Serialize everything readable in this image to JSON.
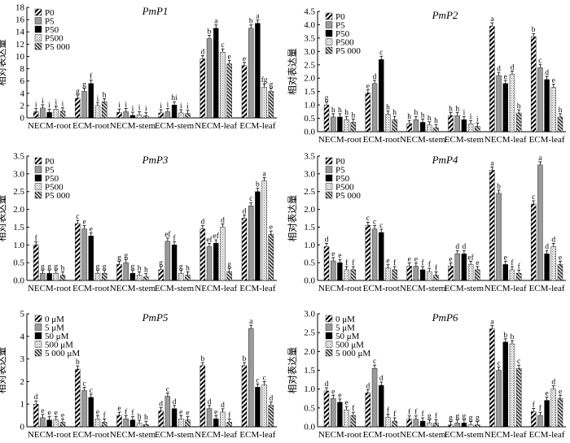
{
  "colors": {
    "axis": "#000000",
    "p0": "hatch-diagonal-black",
    "p5": "#999999",
    "p50": "#000000",
    "p500": "dotted-light",
    "p5000": "hatch-dense"
  },
  "chart_data": [
    {
      "type": "bar",
      "title": "PmP1",
      "ylabel": "相对表达量",
      "ylim": [
        0,
        18
      ],
      "yticks": [
        0,
        2,
        4,
        6,
        8,
        10,
        12,
        14,
        16,
        18
      ],
      "categories": [
        "NECM-root",
        "ECM-root",
        "NECM-stem",
        "ECM-stem",
        "NECM-leaf",
        "ECM-leaf"
      ],
      "series": [
        {
          "name": "P0",
          "values": [
            1.0,
            3.2,
            0.9,
            0.8,
            9.6,
            8.5
          ],
          "letters": [
            "i",
            "g",
            "i",
            "i",
            "d",
            "e"
          ]
        },
        {
          "name": "P5",
          "values": [
            1.6,
            4.3,
            1.0,
            1.0,
            12.9,
            14.6
          ],
          "letters": [
            "i",
            "g",
            "i",
            "i",
            "b",
            "b"
          ]
        },
        {
          "name": "P50",
          "values": [
            0.9,
            5.6,
            0.4,
            2.1,
            14.6,
            15.4
          ],
          "letters": [
            "i",
            "f",
            "i",
            "hi",
            "a",
            "a"
          ]
        },
        {
          "name": "P500",
          "values": [
            1.4,
            2.0,
            0.5,
            0.8,
            10.7,
            5.0
          ],
          "letters": [
            "i",
            "i",
            "i",
            "i",
            "c",
            "fg"
          ]
        },
        {
          "name": "P5 000",
          "values": [
            1.1,
            2.6,
            0.3,
            0.7,
            8.8,
            4.3
          ],
          "letters": [
            "i",
            "h",
            "i",
            "i",
            "e",
            "g"
          ]
        }
      ]
    },
    {
      "type": "bar",
      "title": "PmP2",
      "ylabel": "相对表达量",
      "ylim": [
        0,
        4.5
      ],
      "yticks": [
        0,
        0.5,
        1.0,
        1.5,
        2.0,
        2.5,
        3.0,
        3.5,
        4.0,
        4.5
      ],
      "categories": [
        "NECM-root",
        "ECM-root",
        "NECM-stem",
        "ECM-stem",
        "NECM-leaf",
        "ECM-leaf"
      ],
      "series": [
        {
          "name": "P0",
          "values": [
            1.0,
            1.45,
            0.3,
            0.6,
            3.95,
            3.55
          ],
          "letters": [
            "g",
            "e",
            "h",
            "h",
            "a",
            "b"
          ]
        },
        {
          "name": "P5",
          "values": [
            0.55,
            1.8,
            0.45,
            0.6,
            2.1,
            2.4
          ],
          "letters": [
            "h",
            "d",
            "h",
            "h",
            "d",
            "c"
          ]
        },
        {
          "name": "P50",
          "values": [
            0.55,
            2.7,
            0.35,
            0.45,
            1.8,
            1.95
          ],
          "letters": [
            "h",
            "c",
            "h",
            "i",
            "e",
            "d"
          ]
        },
        {
          "name": "P500",
          "values": [
            0.45,
            0.65,
            0.25,
            0.3,
            2.15,
            1.65
          ],
          "letters": [
            "h",
            "h",
            "h",
            "i",
            "d",
            "e"
          ]
        },
        {
          "name": "P5 000",
          "values": [
            0.35,
            0.45,
            0.15,
            0.2,
            0.7,
            0.55
          ],
          "letters": [
            "h",
            "h",
            "h",
            "i",
            "h",
            "h"
          ]
        }
      ]
    },
    {
      "type": "bar",
      "title": "PmP3",
      "ylabel": "相对表达量",
      "ylim": [
        0,
        3.5
      ],
      "yticks": [
        0,
        0.5,
        1.0,
        1.5,
        2.0,
        2.5,
        3.0,
        3.5
      ],
      "categories": [
        "NECM-root",
        "ECM-root",
        "NECM-stem",
        "ECM-stem",
        "NECM-leaf",
        "ECM-leaf"
      ],
      "series": [
        {
          "name": "P0",
          "values": [
            1.0,
            1.6,
            0.45,
            0.3,
            1.45,
            1.75
          ],
          "letters": [
            "f",
            "c",
            "g",
            "g",
            "d",
            "d"
          ]
        },
        {
          "name": "P5",
          "values": [
            0.2,
            1.45,
            0.5,
            1.1,
            0.95,
            2.1
          ],
          "letters": [
            "g",
            "e",
            "g",
            "ef",
            "ef",
            "c"
          ]
        },
        {
          "name": "P50",
          "values": [
            0.2,
            1.25,
            0.2,
            1.0,
            1.05,
            2.5
          ],
          "letters": [
            "g",
            "e",
            "g",
            "f",
            "ef",
            "b"
          ]
        },
        {
          "name": "P500",
          "values": [
            0.2,
            0.2,
            0.15,
            0.2,
            1.5,
            2.8
          ],
          "letters": [
            "g",
            "g",
            "h",
            "g",
            "d",
            "a"
          ]
        },
        {
          "name": "P5 000",
          "values": [
            0.15,
            0.2,
            0.1,
            0.15,
            0.25,
            1.3
          ],
          "letters": [
            "h",
            "g",
            "h",
            "h",
            "g",
            "e"
          ]
        }
      ]
    },
    {
      "type": "bar",
      "title": "PmP4",
      "ylabel": "相对表达量",
      "ylim": [
        0,
        3.5
      ],
      "yticks": [
        0,
        0.5,
        1.0,
        1.5,
        2.0,
        2.5,
        3.0,
        3.5
      ],
      "categories": [
        "NECM-root",
        "ECM-root",
        "NECM-stem",
        "ECM-stem",
        "NECM-leaf",
        "ECM-leaf"
      ],
      "series": [
        {
          "name": "P0",
          "values": [
            0.95,
            1.55,
            0.4,
            0.4,
            3.1,
            2.15
          ],
          "letters": [
            "d",
            "c",
            "e",
            "e",
            "a",
            "c"
          ]
        },
        {
          "name": "P5",
          "values": [
            0.55,
            1.45,
            0.4,
            0.75,
            2.45,
            3.25
          ],
          "letters": [
            "e",
            "c",
            "e",
            "d",
            "b",
            "a"
          ]
        },
        {
          "name": "P50",
          "values": [
            0.5,
            1.35,
            0.3,
            0.75,
            0.45,
            0.75
          ],
          "letters": [
            "e",
            "c",
            "f",
            "d",
            "e",
            "d"
          ]
        },
        {
          "name": "P500",
          "values": [
            0.3,
            0.35,
            0.25,
            0.45,
            0.3,
            0.95
          ],
          "letters": [
            "f",
            "e",
            "f",
            "ef",
            "f",
            "d"
          ]
        },
        {
          "name": "P5 000",
          "values": [
            0.3,
            0.3,
            0.15,
            0.3,
            0.2,
            0.45
          ],
          "letters": [
            "f",
            "f",
            "f",
            "e",
            "f",
            "e"
          ]
        }
      ]
    },
    {
      "type": "bar",
      "title": "PmP5",
      "ylabel": "相对表达量",
      "ylim": [
        0,
        5
      ],
      "yticks": [
        0,
        1,
        2,
        3,
        4,
        5
      ],
      "categories": [
        "NECM-root",
        "ECM-root",
        "NECM-stem",
        "ECM-stem",
        "NECM-leaf",
        "ECM-leaf"
      ],
      "series": [
        {
          "name": "0 μM",
          "values": [
            1.0,
            2.55,
            0.5,
            0.7,
            2.7,
            2.7
          ],
          "letters": [
            "d",
            "b",
            "e",
            "d",
            "b",
            "b"
          ]
        },
        {
          "name": "5 μM",
          "values": [
            0.4,
            1.6,
            0.35,
            1.35,
            0.8,
            4.35
          ],
          "letters": [
            "e",
            "c",
            "f",
            "c",
            "d",
            "a"
          ]
        },
        {
          "name": "50 μM",
          "values": [
            0.3,
            1.3,
            0.3,
            0.8,
            0.35,
            1.75
          ],
          "letters": [
            "e",
            "c",
            "f",
            "d",
            "e",
            "c"
          ]
        },
        {
          "name": "500 μM",
          "values": [
            0.3,
            0.35,
            0.15,
            0.35,
            0.65,
            1.85
          ],
          "letters": [
            "e",
            "e",
            "h",
            "e",
            "d",
            "c"
          ]
        },
        {
          "name": "5 000 μM",
          "values": [
            0.2,
            0.2,
            0.1,
            0.3,
            0.2,
            0.95
          ],
          "letters": [
            "e",
            "f",
            "h",
            "e",
            "f",
            "d"
          ]
        }
      ]
    },
    {
      "type": "bar",
      "title": "PmP6",
      "ylabel": "相对表达量",
      "ylim": [
        0,
        3.0
      ],
      "yticks": [
        0,
        0.5,
        1.0,
        1.5,
        2.0,
        2.5,
        3.0
      ],
      "categories": [
        "NECM-root",
        "ECM-root",
        "NECM-stem",
        "ECM-stem",
        "NECM-leaf",
        "ECM-leaf"
      ],
      "series": [
        {
          "name": "0 μM",
          "values": [
            0.95,
            0.9,
            0.2,
            0.05,
            2.6,
            0.4
          ],
          "letters": [
            "d",
            "d",
            "f",
            "g",
            "a",
            "f"
          ]
        },
        {
          "name": "5 μM",
          "values": [
            0.75,
            1.55,
            0.2,
            0.1,
            1.5,
            0.3
          ],
          "letters": [
            "e",
            "c",
            "f",
            "g",
            "c",
            "f"
          ]
        },
        {
          "name": "50 μM",
          "values": [
            0.65,
            1.1,
            0.15,
            0.1,
            2.25,
            0.7
          ],
          "letters": [
            "e",
            "d",
            "f",
            "g",
            "b",
            "e"
          ]
        },
        {
          "name": "500 μM",
          "values": [
            0.45,
            0.25,
            0.1,
            0.05,
            2.2,
            1.0
          ],
          "letters": [
            "e",
            "f",
            "g",
            "g",
            "b",
            "d"
          ]
        },
        {
          "name": "5 000 μM",
          "values": [
            0.3,
            0.15,
            0.1,
            0.05,
            1.55,
            0.75
          ],
          "letters": [
            "f",
            "f",
            "f",
            "g",
            "c",
            "e"
          ]
        }
      ]
    }
  ]
}
